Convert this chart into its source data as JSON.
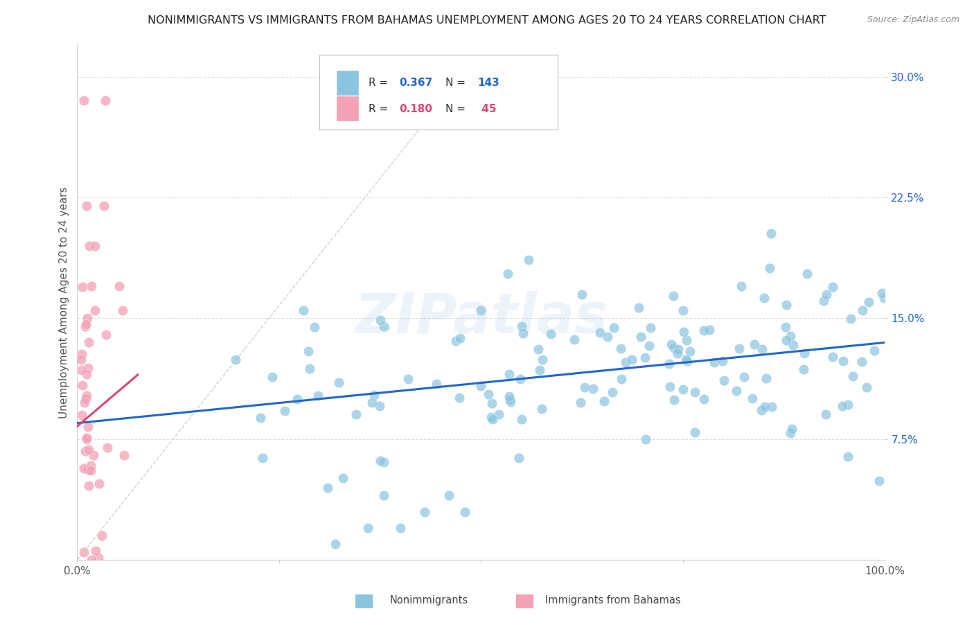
{
  "title": "NONIMMIGRANTS VS IMMIGRANTS FROM BAHAMAS UNEMPLOYMENT AMONG AGES 20 TO 24 YEARS CORRELATION CHART",
  "source": "Source: ZipAtlas.com",
  "ylabel": "Unemployment Among Ages 20 to 24 years",
  "xmin": 0.0,
  "xmax": 1.0,
  "ymin": 0.0,
  "ymax": 0.32,
  "yticks": [
    0.075,
    0.15,
    0.225,
    0.3
  ],
  "ytick_labels": [
    "7.5%",
    "15.0%",
    "22.5%",
    "30.0%"
  ],
  "nonimmigrant_R": 0.367,
  "nonimmigrant_N": 143,
  "immigrant_R": 0.18,
  "immigrant_N": 45,
  "blue_color": "#89c4e1",
  "pink_color": "#f4a0b5",
  "blue_line_color": "#2266cc",
  "pink_line_color": "#dd4477",
  "diagonal_color": "#cccccc",
  "background_color": "#ffffff",
  "grid_color": "#dddddd",
  "watermark": "ZIPatlas",
  "legend_label1": "Nonimmigrants",
  "legend_label2": "Immigrants from Bahamas"
}
